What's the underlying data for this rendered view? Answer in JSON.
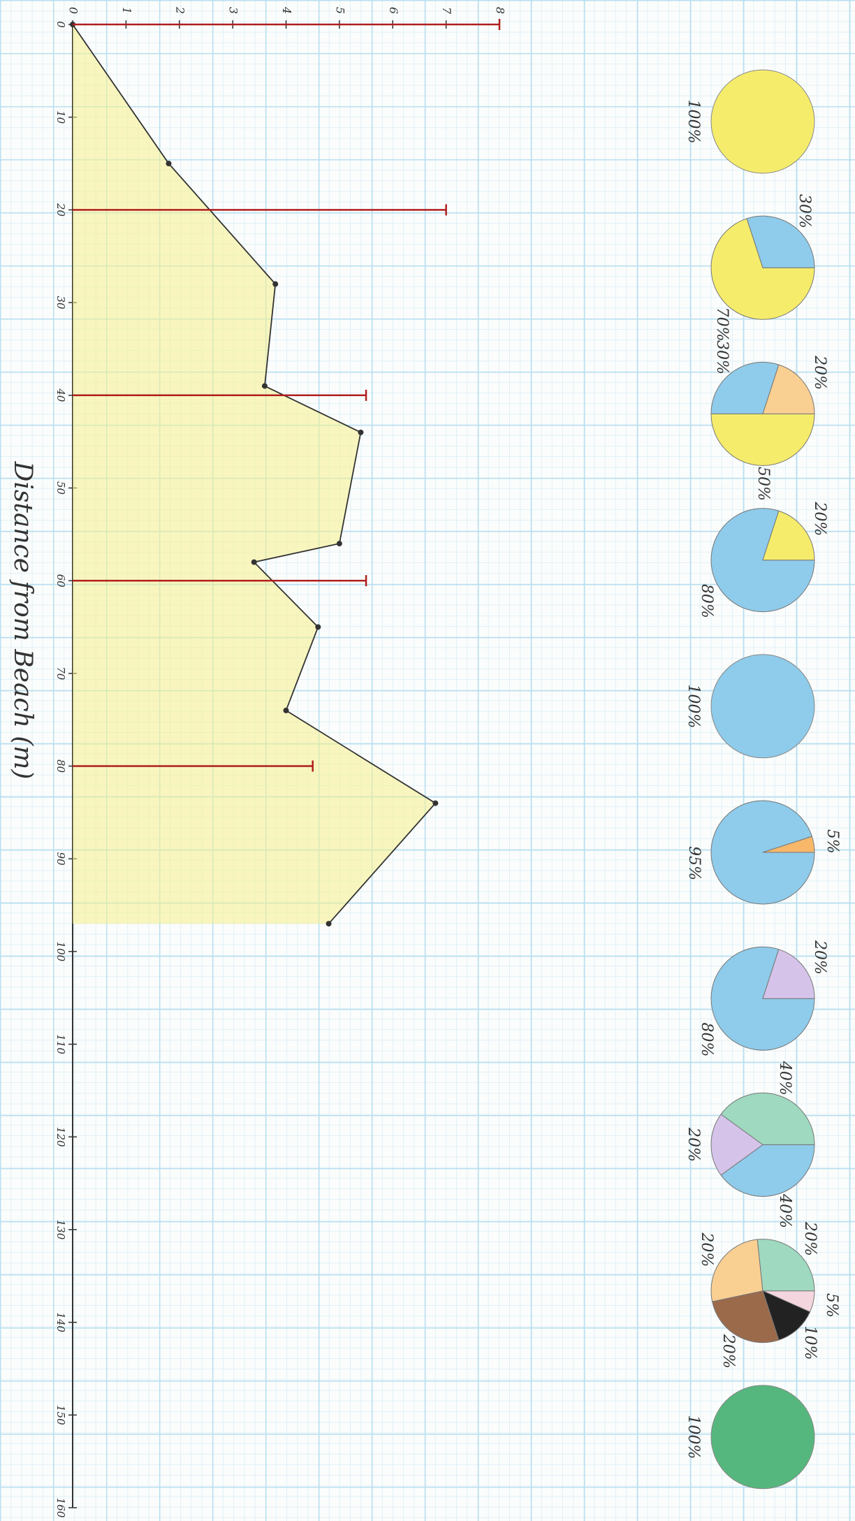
{
  "chart_data": [
    {
      "type": "line",
      "x_label": "Distance from Beach (m)",
      "x": [
        0,
        15,
        28,
        39,
        44,
        56,
        58,
        65,
        74,
        84,
        97
      ],
      "series": [
        {
          "color": "#333333",
          "values": [
            0,
            1.8,
            3.8,
            3.6,
            5.4,
            5.0,
            3.4,
            4.6,
            4.0,
            6.8,
            4.8
          ]
        }
      ],
      "area_color": "#f6f08a",
      "xlim": [
        0,
        160
      ],
      "xticks": [
        0,
        10,
        20,
        30,
        40,
        50,
        60,
        70,
        80,
        90,
        100,
        110,
        120,
        130,
        140,
        150,
        160
      ],
      "ylim": [
        0,
        8
      ],
      "yticks": [
        0,
        1,
        2,
        3,
        4,
        5,
        6,
        7,
        8
      ]
    },
    {
      "type": "bar",
      "x": [
        0,
        20,
        40,
        60,
        80
      ],
      "values": [
        8,
        7,
        5.5,
        5.5,
        4.5
      ],
      "color": "#b01e1e"
    },
    {
      "type": "pie",
      "pies": [
        {
          "values": [
            100
          ],
          "value_labels": [
            "100%"
          ],
          "colors": [
            "#f5ec6c"
          ]
        },
        {
          "values": [
            70,
            30
          ],
          "value_labels": [
            "70%",
            "30%"
          ],
          "colors": [
            "#f5ec6c",
            "#8fcbea"
          ]
        },
        {
          "values": [
            50,
            30,
            20
          ],
          "value_labels": [
            "50%",
            "30%",
            "20%"
          ],
          "colors": [
            "#f5ec6c",
            "#8fcbea",
            "#f9cf92"
          ]
        },
        {
          "values": [
            80,
            20
          ],
          "value_labels": [
            "80%",
            "20%"
          ],
          "colors": [
            "#8fcbea",
            "#f5ec6c"
          ]
        },
        {
          "values": [
            100
          ],
          "value_labels": [
            "100%"
          ],
          "colors": [
            "#8fcbea"
          ]
        },
        {
          "values": [
            95,
            5
          ],
          "value_labels": [
            "95%",
            "5%"
          ],
          "colors": [
            "#8fcbea",
            "#f7b86a"
          ]
        },
        {
          "values": [
            80,
            20
          ],
          "value_labels": [
            "80%",
            "20%"
          ],
          "colors": [
            "#8fcbea",
            "#d6c3ea"
          ]
        },
        {
          "values": [
            40,
            20,
            40
          ],
          "value_labels": [
            "40%",
            "20%",
            "40%"
          ],
          "colors": [
            "#8fcbea",
            "#d6c3ea",
            "#9fd9bf"
          ]
        },
        {
          "values": [
            5,
            10,
            20,
            20,
            20
          ],
          "value_labels": [
            "5%",
            "10%",
            "20%",
            "20%",
            "20%"
          ],
          "colors": [
            "#f4d6de",
            "#222222",
            "#9b6a4b",
            "#f9cf92",
            "#9fd9bf"
          ]
        },
        {
          "values": [
            100
          ],
          "value_labels": [
            "100%"
          ],
          "colors": [
            "#55b77d"
          ]
        }
      ]
    }
  ]
}
